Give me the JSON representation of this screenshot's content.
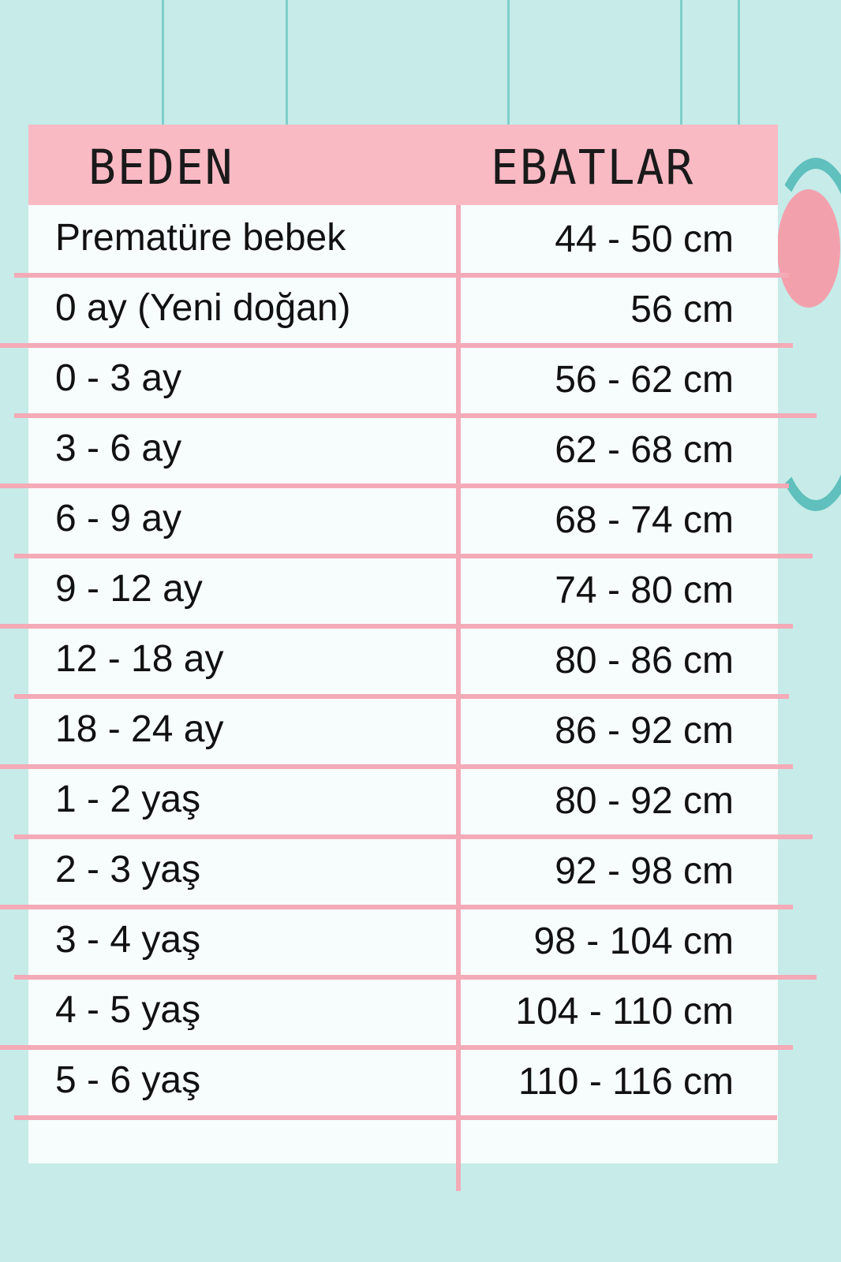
{
  "colors": {
    "background": "#c6ebe8",
    "header": "#f9bac4",
    "lines": "#f4aab7",
    "panel": "#f7fcfc"
  },
  "table": {
    "headers": [
      "BEDEN",
      "EBATLAR"
    ],
    "rows": [
      [
        "Prematüre bebek",
        "44 - 50 cm"
      ],
      [
        "0 ay (Yeni doğan)",
        "56 cm"
      ],
      [
        "0 - 3 ay",
        "56 - 62 cm"
      ],
      [
        "3 - 6 ay",
        "62 - 68 cm"
      ],
      [
        "6 - 9 ay",
        "68 - 74 cm"
      ],
      [
        "9 - 12 ay",
        "74 - 80 cm"
      ],
      [
        "12 - 18 ay",
        "80 - 86 cm"
      ],
      [
        "18 - 24 ay",
        "86 - 92 cm"
      ],
      [
        "1 - 2 yaş",
        "80 - 92 cm"
      ],
      [
        "2 - 3 yaş",
        "92 - 98 cm"
      ],
      [
        "3 - 4 yaş",
        "98 - 104 cm"
      ],
      [
        "4 - 5 yaş",
        "104 - 110 cm"
      ],
      [
        "5 - 6 yaş",
        "110 - 116 cm"
      ]
    ]
  }
}
